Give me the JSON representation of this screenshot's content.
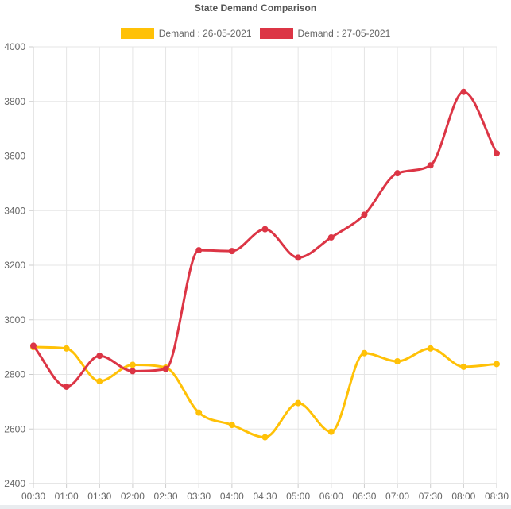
{
  "chart_data": {
    "type": "line",
    "title": "State Demand Comparison",
    "xlabel": "",
    "ylabel": "",
    "categories": [
      "00:30",
      "01:00",
      "01:30",
      "02:00",
      "02:30",
      "03:30",
      "04:00",
      "04:30",
      "05:00",
      "06:00",
      "06:30",
      "07:00",
      "07:30",
      "08:00",
      "08:30"
    ],
    "series": [
      {
        "name": "Demand : 26-05-2021",
        "color": "#ffc107",
        "values": [
          2900,
          2895,
          2775,
          2835,
          2825,
          2660,
          2615,
          2570,
          2695,
          2590,
          2878,
          2848,
          2895,
          2828,
          2838
        ]
      },
      {
        "name": "Demand : 27-05-2021",
        "color": "#dc3545",
        "values": [
          2905,
          2755,
          2868,
          2812,
          2820,
          3255,
          3252,
          3332,
          3228,
          3302,
          3385,
          3537,
          3566,
          3835,
          3610
        ]
      }
    ],
    "ylim": [
      2400,
      4000
    ],
    "yticks": [
      "2400",
      "2600",
      "2800",
      "3000",
      "3200",
      "3400",
      "3600",
      "3800",
      "4000"
    ],
    "grid": true,
    "legend_position": "top"
  }
}
